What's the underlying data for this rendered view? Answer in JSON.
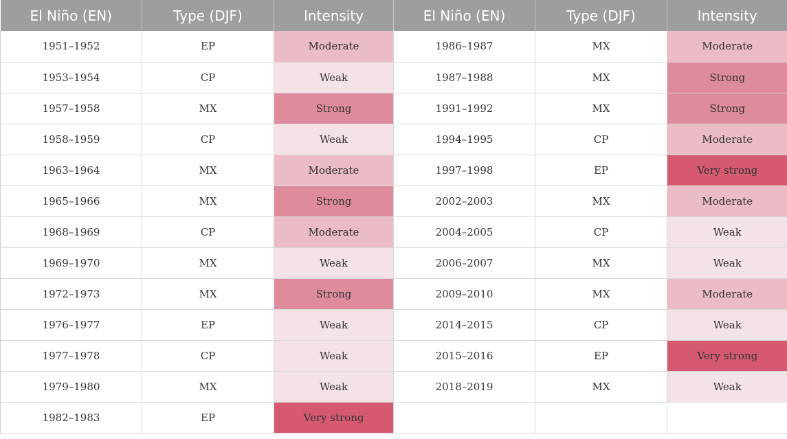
{
  "header": [
    "El Niño (EN)",
    "Type (DJF)",
    "Intensity",
    "El Niño (EN)",
    "Type (DJF)",
    "Intensity"
  ],
  "intensity_colors": {
    "Weak": "#f5e2e6",
    "Moderate": "#ebbcc6",
    "Strong": "#de8c9c",
    "Very strong": "#d55a70"
  },
  "left": [
    {
      "years": "1951–1952",
      "type": "EP",
      "intensity": "Moderate"
    },
    {
      "years": "1953–1954",
      "type": "CP",
      "intensity": "Weak"
    },
    {
      "years": "1957–1958",
      "type": "MX",
      "intensity": "Strong"
    },
    {
      "years": "1958–1959",
      "type": "CP",
      "intensity": "Weak"
    },
    {
      "years": "1963–1964",
      "type": "MX",
      "intensity": "Moderate"
    },
    {
      "years": "1965–1966",
      "type": "MX",
      "intensity": "Strong"
    },
    {
      "years": "1968–1969",
      "type": "CP",
      "intensity": "Moderate"
    },
    {
      "years": "1969–1970",
      "type": "MX",
      "intensity": "Weak"
    },
    {
      "years": "1972–1973",
      "type": "MX",
      "intensity": "Strong"
    },
    {
      "years": "1976–1977",
      "type": "EP",
      "intensity": "Weak"
    },
    {
      "years": "1977–1978",
      "type": "CP",
      "intensity": "Weak"
    },
    {
      "years": "1979–1980",
      "type": "MX",
      "intensity": "Weak"
    },
    {
      "years": "1982–1983",
      "type": "EP",
      "intensity": "Very strong"
    }
  ],
  "right": [
    {
      "years": "1986–1987",
      "type": "MX",
      "intensity": "Moderate"
    },
    {
      "years": "1987–1988",
      "type": "MX",
      "intensity": "Strong"
    },
    {
      "years": "1991–1992",
      "type": "MX",
      "intensity": "Strong"
    },
    {
      "years": "1994–1995",
      "type": "CP",
      "intensity": "Moderate"
    },
    {
      "years": "1997–1998",
      "type": "EP",
      "intensity": "Very strong"
    },
    {
      "years": "2002–2003",
      "type": "MX",
      "intensity": "Moderate"
    },
    {
      "years": "2004–2005",
      "type": "CP",
      "intensity": "Weak"
    },
    {
      "years": "2006–2007",
      "type": "MX",
      "intensity": "Weak"
    },
    {
      "years": "2009–2010",
      "type": "MX",
      "intensity": "Moderate"
    },
    {
      "years": "2014–2015",
      "type": "CP",
      "intensity": "Weak"
    },
    {
      "years": "2015–2016",
      "type": "EP",
      "intensity": "Very strong"
    },
    {
      "years": "2018–2019",
      "type": "MX",
      "intensity": "Weak"
    }
  ]
}
